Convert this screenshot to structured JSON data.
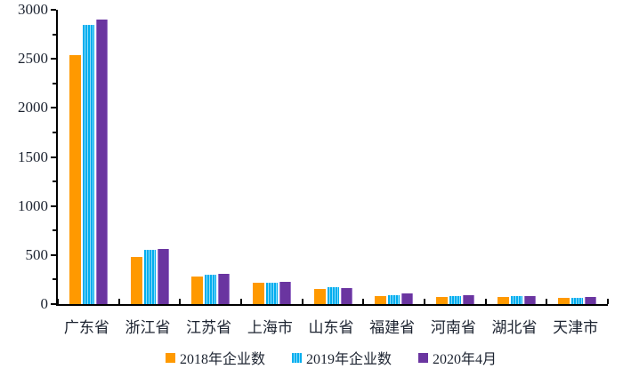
{
  "chart_data": {
    "type": "bar",
    "title": "",
    "xlabel": "",
    "ylabel": "",
    "categories": [
      "广东省",
      "浙江省",
      "江苏省",
      "上海市",
      "山东省",
      "福建省",
      "河南省",
      "湖北省",
      "天津市"
    ],
    "series": [
      {
        "name": "2018年企业数",
        "color": "#FF9900",
        "style": "solid",
        "values": [
          2540,
          480,
          285,
          215,
          150,
          80,
          70,
          70,
          60
        ]
      },
      {
        "name": "2019年企业数",
        "color": "#00AEEF",
        "stripe_light": "#8EDCFA",
        "style": "striped",
        "values": [
          2850,
          550,
          300,
          220,
          170,
          90,
          80,
          80,
          62
        ]
      },
      {
        "name": "2020年4月",
        "color": "#6A35A0",
        "edge_light": "#9A73C8",
        "style": "solid-edged",
        "values": [
          2900,
          560,
          310,
          225,
          165,
          105,
          90,
          85,
          70
        ]
      }
    ],
    "ylim": [
      0,
      3000
    ],
    "y_major_ticks": [
      0,
      500,
      1000,
      1500,
      2000,
      2500,
      3000
    ],
    "y_minor_interval": 250,
    "legend_position": "bottom",
    "grid": false,
    "axis_color": "#000000",
    "text_color": "#1c2330"
  }
}
